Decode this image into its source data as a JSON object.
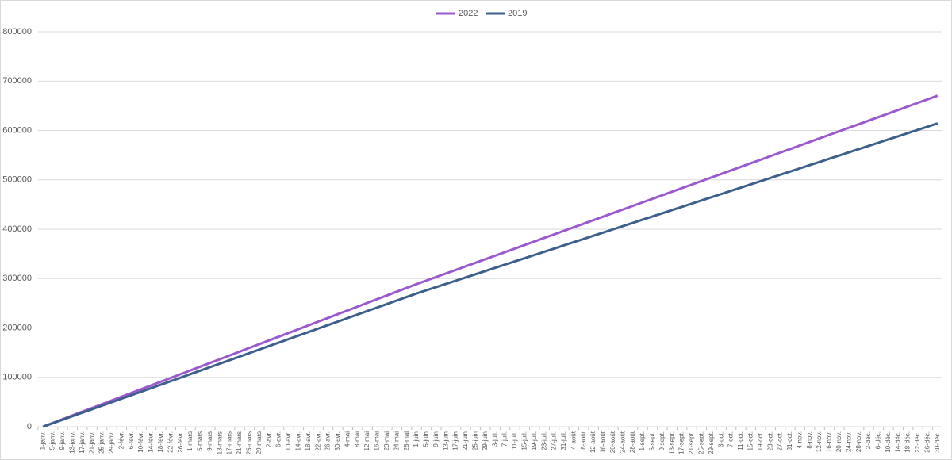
{
  "chart_data": {
    "type": "line",
    "categories": [
      "1-janv.",
      "5-janv.",
      "9-janv.",
      "13-janv.",
      "17-janv.",
      "21-janv.",
      "25-janv.",
      "29-janv.",
      "2-févr.",
      "6-févr.",
      "10-févr.",
      "14-févr.",
      "18-févr.",
      "22-févr.",
      "26-févr.",
      "1-mars",
      "5-mars",
      "9-mars",
      "13-mars",
      "17-mars",
      "21-mars",
      "25-mars",
      "29-mars",
      "2-avr.",
      "6-avr.",
      "10-avr.",
      "14-avr.",
      "18-avr.",
      "22-avr.",
      "26-avr.",
      "30-avr.",
      "4-mai",
      "8-mai",
      "12-mai",
      "16-mai",
      "20-mai",
      "24-mai",
      "28-mai",
      "1-juin",
      "5-juin",
      "9-juin",
      "13-juin",
      "17-juin",
      "21-juin",
      "25-juin",
      "29-juin",
      "3-juil.",
      "7-juil.",
      "11-juil.",
      "15-juil.",
      "19-juil.",
      "23-juil.",
      "27-juil.",
      "31-juil.",
      "4-août",
      "8-août",
      "12-août",
      "16-août",
      "20-août",
      "24-août",
      "28-août",
      "1-sept.",
      "5-sept.",
      "9-sept.",
      "13-sept.",
      "17-sept.",
      "21-sept.",
      "25-sept.",
      "29-sept.",
      "3-oct.",
      "7-oct.",
      "11-oct.",
      "15-oct.",
      "19-oct.",
      "23-oct.",
      "27-oct.",
      "31-oct.",
      "4-nov.",
      "8-nov.",
      "12-nov.",
      "16-nov.",
      "20-nov.",
      "24-nov.",
      "28-nov.",
      "2-déc.",
      "6-déc.",
      "10-déc.",
      "14-déc.",
      "18-déc.",
      "22-déc.",
      "26-déc.",
      "30-déc."
    ],
    "series": [
      {
        "name": "2022",
        "color": "#9b59d0",
        "values": [
          0,
          7600,
          15200,
          22800,
          30400,
          38000,
          45600,
          53200,
          60800,
          68400,
          76000,
          83600,
          91200,
          98800,
          106400,
          114000,
          121600,
          129200,
          136800,
          144400,
          152000,
          159600,
          167200,
          174800,
          182400,
          190000,
          197600,
          205200,
          212800,
          220400,
          228000,
          235600,
          243200,
          250800,
          258400,
          266000,
          273600,
          281200,
          288800,
          296000,
          303200,
          310400,
          317600,
          324800,
          332000,
          339200,
          346400,
          353600,
          360800,
          368000,
          375200,
          382400,
          389600,
          396800,
          404000,
          411200,
          418400,
          425600,
          432800,
          440000,
          447200,
          454400,
          461600,
          468800,
          476000,
          483200,
          490400,
          497600,
          504800,
          512000,
          519200,
          526400,
          533600,
          540800,
          548000,
          555200,
          562400,
          569600,
          576800,
          584000,
          591200,
          598400,
          605600,
          612800,
          620000,
          627200,
          634400,
          641600,
          648800,
          656000,
          663200,
          670400
        ]
      },
      {
        "name": "2019",
        "color": "#3d5f8c",
        "values": [
          0,
          7100,
          14200,
          21300,
          28400,
          35500,
          42600,
          49700,
          56800,
          63900,
          71000,
          78100,
          85200,
          92300,
          99400,
          106500,
          113600,
          120700,
          127800,
          134900,
          142000,
          149100,
          156200,
          163300,
          170400,
          177500,
          184600,
          191700,
          198800,
          205900,
          213000,
          220100,
          227200,
          234300,
          241400,
          248500,
          255600,
          262700,
          269800,
          276300,
          282800,
          289300,
          295800,
          302300,
          308800,
          315300,
          321800,
          328300,
          334800,
          341300,
          347800,
          354300,
          360800,
          367300,
          373800,
          380300,
          386800,
          393300,
          399800,
          406300,
          412800,
          419300,
          425800,
          432300,
          438800,
          445300,
          451800,
          458300,
          464800,
          471300,
          477800,
          484300,
          490800,
          497300,
          503800,
          510300,
          516800,
          523300,
          529800,
          536300,
          542800,
          549300,
          555800,
          562300,
          568800,
          575300,
          581800,
          588300,
          594800,
          601300,
          607800,
          614300
        ]
      }
    ],
    "ylim": [
      0,
      800000
    ],
    "yticks": [
      0,
      100000,
      200000,
      300000,
      400000,
      500000,
      600000,
      700000,
      800000
    ],
    "grid": true
  }
}
